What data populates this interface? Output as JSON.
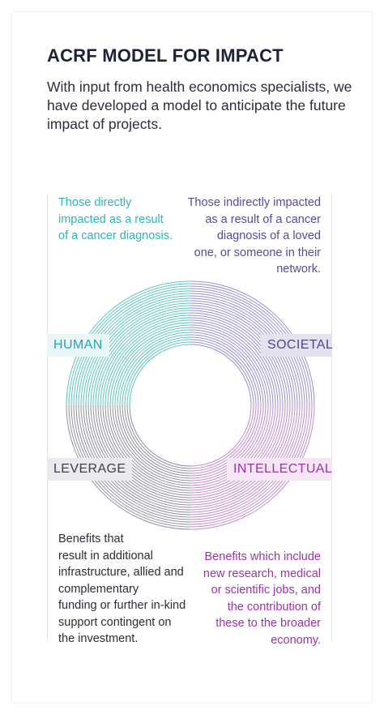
{
  "header": {
    "title": "ACRF MODEL FOR IMPACT",
    "intro": "With input from health economics specialists, we have developed a model to anticipate the future impact of projects."
  },
  "quadrants": {
    "human": {
      "label": "HUMAN",
      "description": "Those directly\nimpacted as a result\nof a cancer diagnosis."
    },
    "societal": {
      "label": "SOCIETAL",
      "description": "Those indirectly impacted\nas a result of a cancer\ndiagnosis of a loved\none, or someone in their\nnetwork."
    },
    "leverage": {
      "label": "LEVERAGE",
      "description": "Benefits that\nresult in additional\ninfrastructure, allied and\ncomplementary\nfunding or further in-kind\nsupport contingent on\nthe investment."
    },
    "intellectual": {
      "label": "INTELLECTUAL",
      "description": "Benefits which include\nnew research, medical\nor scientific jobs, and\nthe contribution of\nthese to the broader\neconomy."
    }
  },
  "colors": {
    "human": "#5fc4c8",
    "societal": "#9b8fcf",
    "leverage": "#8f919b",
    "intellectual": "#c48ad0"
  }
}
